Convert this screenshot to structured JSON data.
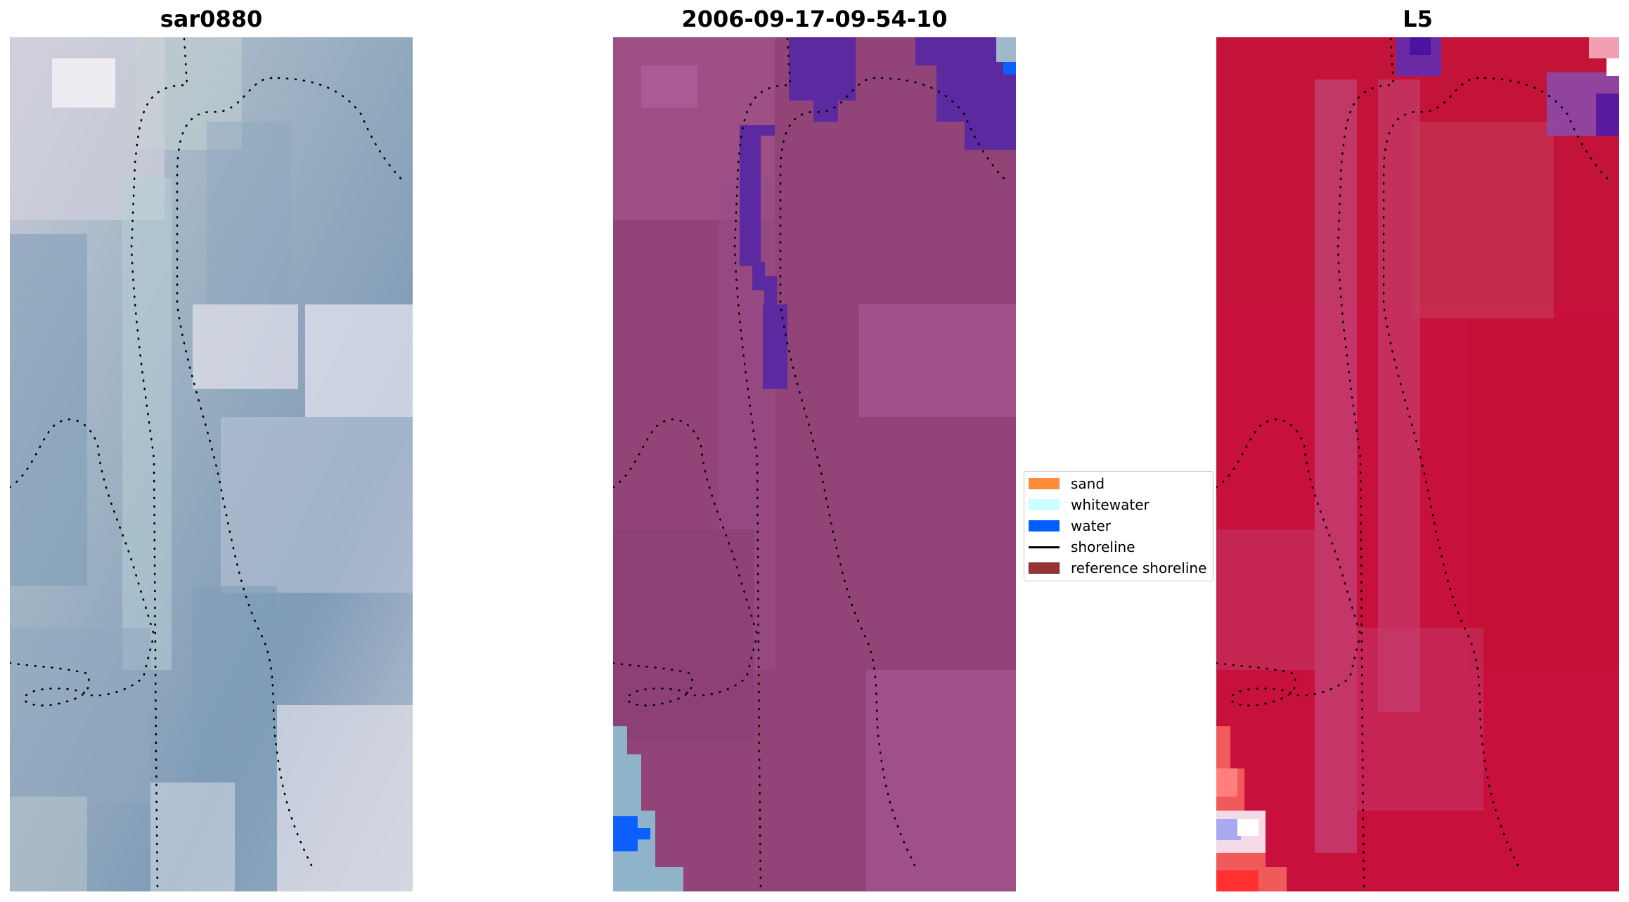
{
  "panels": [
    {
      "title": "sar0880"
    },
    {
      "title": "2006-09-17-09-54-10"
    },
    {
      "title": "L5"
    }
  ],
  "legend": [
    {
      "label": "sand",
      "color": "#ff8c3a",
      "kind": "patch"
    },
    {
      "label": "whitewater",
      "color": "#ccffff",
      "kind": "patch"
    },
    {
      "label": "water",
      "color": "#0060ff",
      "kind": "patch"
    },
    {
      "label": "shoreline",
      "color": "#000000",
      "kind": "line"
    },
    {
      "label": "reference shoreline",
      "color": "#993333",
      "kind": "patch"
    }
  ]
}
